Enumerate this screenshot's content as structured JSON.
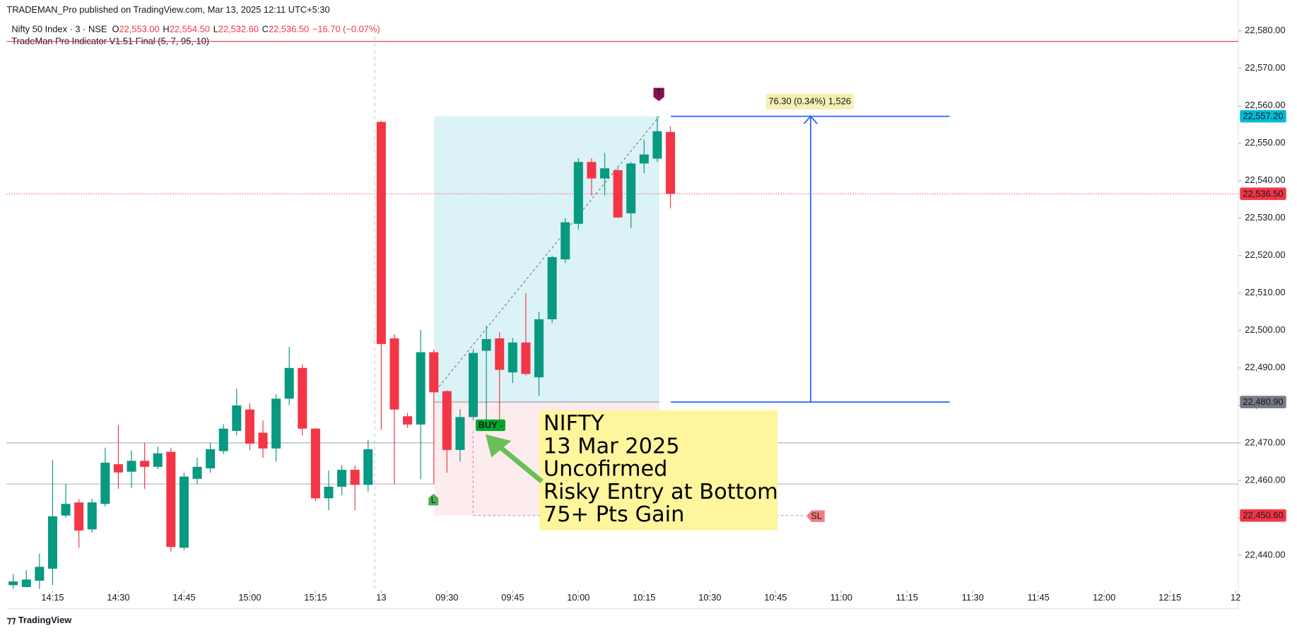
{
  "header": {
    "publisher": "TRADEMAN_Pro published on TradingView.com, Mar 13, 2025 12:11 UTC+5:30",
    "footer": "TradingView"
  },
  "chart_data": {
    "type": "candlestick",
    "symbol": "Nifty 50 Index · 3 · NSE",
    "ohlc_header": [
      {
        "label": "O",
        "value": "22,553.00"
      },
      {
        "label": "H",
        "value": "22,554.50"
      },
      {
        "label": "L",
        "value": "22,532.60"
      },
      {
        "label": "C",
        "value": "22,536.50"
      }
    ],
    "change": "−16.70 (−0.07%)",
    "indicator": "TradeMan Pro Indicator V1.51 Final (5, 7, 95, 10)",
    "x": [
      0,
      1,
      2,
      3,
      4,
      5,
      6,
      7,
      8,
      9,
      10,
      11,
      12,
      13,
      14,
      15,
      16,
      17,
      18,
      19,
      20,
      21,
      22,
      23,
      24,
      25,
      26,
      27,
      28,
      29,
      30,
      31,
      32,
      33,
      34,
      35,
      36,
      37,
      38,
      39,
      40,
      41,
      42,
      43,
      44,
      45,
      46,
      47,
      48,
      49,
      50
    ],
    "open": [
      22432,
      22431.5,
      22433.2,
      22436.4,
      22450.6,
      22454.1,
      22446.9,
      22453.7,
      22464.3,
      22462.3,
      22465.2,
      22463.6,
      22467.6,
      22442,
      22460.4,
      22463.2,
      22467.8,
      22473.2,
      22478.9,
      22472.7,
      22468.5,
      22481.8,
      22490,
      22473.8,
      22455.2,
      22458.3,
      22462.8,
      22458.8,
      22555.7,
      22497.9,
      22477.1,
      22474.9,
      22494.2,
      22483.8,
      22468.1,
      22476.9,
      22494.6,
      22497.9,
      22488.8,
      22496.8,
      22487.5,
      22503,
      22519,
      22528.5,
      22545,
      22540.6,
      22542.8,
      22531.3,
      22544.6,
      22545.9,
      22553
    ],
    "high": [
      22435,
      22436,
      22440.4,
      22465.4,
      22459,
      22455,
      22455,
      22468.7,
      22474.7,
      22468,
      22470,
      22469,
      22468.7,
      22462,
      22466,
      22470,
      22475,
      22484.5,
      22480.6,
      22476,
      22483,
      22495.6,
      22491,
      22474,
      22462.6,
      22464,
      22464,
      22470.8,
      22556,
      22499,
      22478,
      22500.1,
      22495,
      22484,
      22479,
      22495,
      22501.3,
      22499.5,
      22498,
      22510,
      22505,
      22520,
      22530,
      22546,
      22546,
      22547.4,
      22543.5,
      22545,
      22551,
      22557.2,
      22554.5
    ],
    "low": [
      22431,
      22431.5,
      22431,
      22432,
      22450,
      22442,
      22446,
      22453,
      22457.7,
      22458,
      22457.7,
      22463,
      22441,
      22441.4,
      22459,
      22462,
      22467,
      22472,
      22468,
      22466,
      22465,
      22480,
      22472,
      22454.5,
      22452,
      22456,
      22452,
      22457,
      22473.5,
      22459,
      22474,
      22460.3,
      22459,
      22462,
      22465,
      22476,
      22473.5,
      22473.5,
      22486,
      22488,
      22482.6,
      22502,
      22518,
      22527,
      22536,
      22536,
      22530,
      22527.3,
      22542,
      22545,
      22532.6
    ],
    "close": [
      22433,
      22433.5,
      22436.9,
      22450.4,
      22453.7,
      22446.6,
      22454.1,
      22464.7,
      22462.1,
      22465.2,
      22463.6,
      22467.2,
      22442.2,
      22461,
      22463.6,
      22468.3,
      22473.8,
      22480,
      22469.8,
      22468.5,
      22481.8,
      22490,
      22473.8,
      22455.2,
      22458.3,
      22462.8,
      22458.8,
      22468.3,
      22496.4,
      22478.9,
      22474.9,
      22494.2,
      22483.5,
      22468.1,
      22476.9,
      22494,
      22497.7,
      22489.5,
      22496.8,
      22488.4,
      22503,
      22519.6,
      22528.9,
      22545,
      22540.6,
      22543.3,
      22530.2,
      22544.6,
      22547,
      22553.2,
      22536.5
    ],
    "up_color": "#089981",
    "down_color": "#f23645",
    "xlim": [
      -0.5,
      93.2
    ],
    "xticks": [
      {
        "value": 3,
        "label": "14:15"
      },
      {
        "value": 8,
        "label": "14:30"
      },
      {
        "value": 13,
        "label": "14:45"
      },
      {
        "value": 18,
        "label": "15:00"
      },
      {
        "value": 23,
        "label": "15:15"
      },
      {
        "value": 28,
        "label": "13"
      },
      {
        "value": 33,
        "label": "09:30"
      },
      {
        "value": 38,
        "label": "09:45"
      },
      {
        "value": 43,
        "label": "10:00"
      },
      {
        "value": 48,
        "label": "10:15"
      },
      {
        "value": 53,
        "label": "10:30"
      },
      {
        "value": 58,
        "label": "10:45"
      },
      {
        "value": 63,
        "label": "11:00"
      },
      {
        "value": 68,
        "label": "11:15"
      },
      {
        "value": 73,
        "label": "11:30"
      },
      {
        "value": 78,
        "label": "11:45"
      },
      {
        "value": 83,
        "label": "12:00"
      },
      {
        "value": 88,
        "label": "12:15"
      },
      {
        "value": 93,
        "label": "12"
      }
    ],
    "ylim": [
      22431,
      22582
    ],
    "yticks": [
      {
        "value": 22440,
        "label": "22,440.00"
      },
      {
        "value": 22450,
        "label": "22,450.00"
      },
      {
        "value": 22460,
        "label": "22,460.00"
      },
      {
        "value": 22470,
        "label": "22,470.00"
      },
      {
        "value": 22480,
        "label": "22,480.00"
      },
      {
        "value": 22490,
        "label": "22,490.00"
      },
      {
        "value": 22500,
        "label": "22,500.00"
      },
      {
        "value": 22510,
        "label": "22,510.00"
      },
      {
        "value": 22520,
        "label": "22,520.00"
      },
      {
        "value": 22530,
        "label": "22,530.00"
      },
      {
        "value": 22540,
        "label": "22,540.00"
      },
      {
        "value": 22550,
        "label": "22,550.00"
      },
      {
        "value": 22560,
        "label": "22,560.00"
      },
      {
        "value": 22570,
        "label": "22,570.00"
      },
      {
        "value": 22580,
        "label": "22,580.00"
      }
    ],
    "levels": [
      {
        "value": 22577.2,
        "color": "#f23645"
      },
      {
        "value": 22470,
        "color": "#b2b5be"
      },
      {
        "value": 22459,
        "color": "#b2b5be"
      }
    ],
    "price_labels": [
      {
        "value": 22557.2,
        "label": "22,557.20",
        "color": "#00bcd4"
      },
      {
        "value": 22536.5,
        "label": "22,536.50",
        "color": "#f23645"
      },
      {
        "value": 22480.9,
        "label": "22,480.90",
        "color": "#787b86"
      },
      {
        "value": 22450.6,
        "label": "22,450.60",
        "color": "#f23645"
      }
    ],
    "position": {
      "entry": 22480.9,
      "target": 22557.2,
      "stop": 22450.6,
      "measure": "76.30 (0.34%) 1,526"
    },
    "markers": {
      "target": "T",
      "low": "L",
      "buy": "BUY -",
      "stop": "SL"
    },
    "annotation": [
      "NIFTY",
      "13 Mar 2025",
      "Uncofirmed",
      "Risky Entry at Bottom",
      "75+ Pts Gain"
    ]
  }
}
